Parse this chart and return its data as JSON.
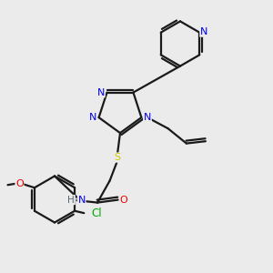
{
  "bg_color": "#ebebeb",
  "bond_color": "#1a1a1a",
  "line_width": 1.6,
  "atom_colors": {
    "N": "#0000ee",
    "O": "#ee0000",
    "S": "#cccc00",
    "Cl": "#00aa00",
    "C": "#1a1a1a",
    "H": "#556677"
  },
  "font_size": 8.0
}
